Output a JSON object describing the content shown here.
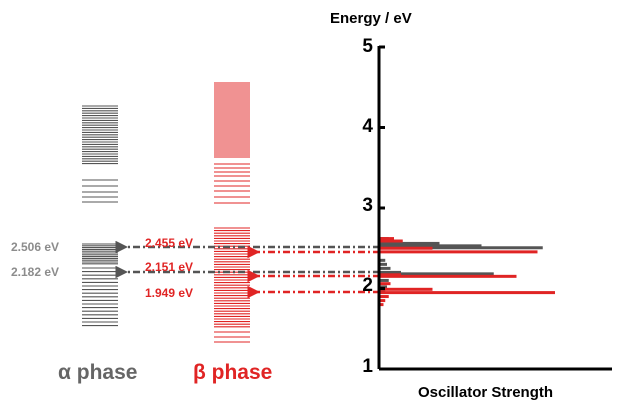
{
  "axis": {
    "title": "Energy / eV",
    "xlabel": "Oscillator Strength",
    "ticks": [
      "1",
      "2",
      "3",
      "4",
      "5"
    ],
    "range": [
      1,
      5
    ]
  },
  "phases": {
    "alpha": {
      "label": "α phase",
      "color": "#555555",
      "values": [
        "2.506 eV",
        "2.182 eV"
      ]
    },
    "beta": {
      "label": "β phase",
      "color": "#e02424",
      "values": [
        "2.455 eV",
        "2.151 eV",
        "1.949 eV"
      ]
    }
  },
  "chart_data": {
    "type": "bar",
    "orientation": "horizontal",
    "ylim": [
      1,
      5
    ],
    "series": [
      {
        "color": "#555555",
        "energies": [
          2.506,
          2.53,
          2.56,
          2.58,
          2.62,
          2.182,
          2.2,
          2.25,
          2.3,
          2.35,
          2.1,
          2.02,
          1.96
        ],
        "strengths": [
          0.93,
          0.58,
          0.34,
          0.12,
          0.05,
          0.65,
          0.12,
          0.06,
          0.04,
          0.03,
          0.05,
          0.04,
          0.03
        ]
      },
      {
        "color": "#e02424",
        "energies": [
          2.455,
          2.5,
          2.59,
          2.62,
          2.151,
          2.17,
          2.06,
          1.949,
          1.99,
          1.9,
          1.85,
          1.8
        ],
        "strengths": [
          0.9,
          0.3,
          0.13,
          0.08,
          0.78,
          0.12,
          0.06,
          1.0,
          0.3,
          0.05,
          0.03,
          0.02
        ]
      }
    ]
  }
}
